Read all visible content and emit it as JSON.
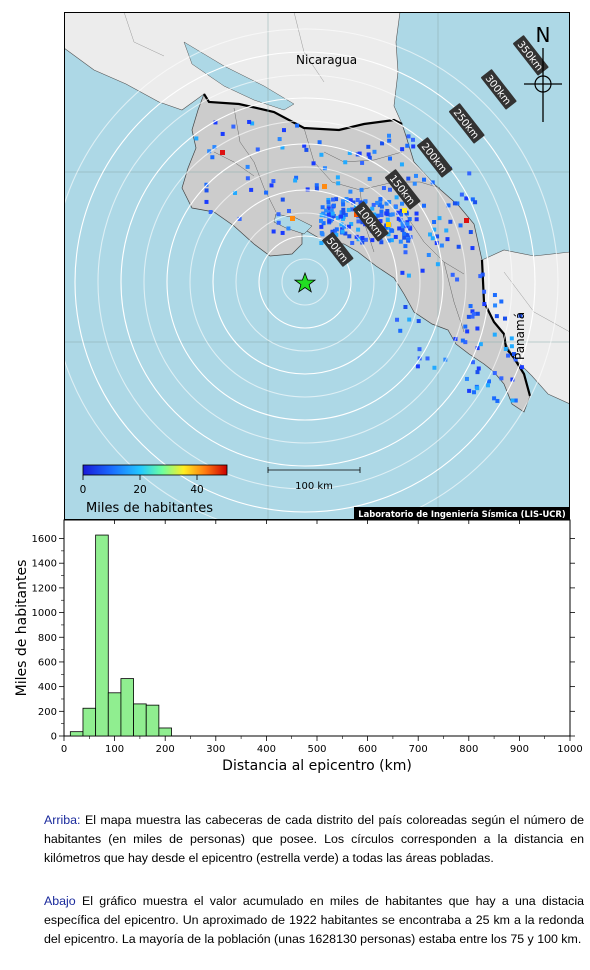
{
  "map": {
    "labels": {
      "nicaragua": "Nicaragua",
      "panama": "Panamá",
      "north": "N"
    },
    "rings": [
      "50km",
      "100km",
      "150km",
      "200km",
      "250km",
      "300km",
      "350km"
    ],
    "scale_bar": "100 km",
    "colorbar": {
      "ticks": [
        "0",
        "20",
        "40"
      ],
      "label": "Miles de habitantes"
    },
    "credit": "Laboratorio de Ingeniería Sísmica (LIS-UCR)",
    "colors": {
      "sea": "#add8e6",
      "land_neighbor": "#ececec",
      "costa_rica": "#cccccc",
      "epicenter": "#22dd22"
    }
  },
  "chart_data": {
    "type": "bar",
    "xlabel": "Distancia al epicentro (km)",
    "ylabel": "Miles de habitantes",
    "xlim": [
      0,
      1000
    ],
    "ylim": [
      0,
      1750
    ],
    "xticks": [
      "0",
      "100",
      "200",
      "300",
      "400",
      "500",
      "600",
      "700",
      "800",
      "900",
      "1000"
    ],
    "yticks": [
      "0",
      "200",
      "400",
      "600",
      "800",
      "1000",
      "1200",
      "1400",
      "1600"
    ],
    "bin_width_km": 25,
    "bins": [
      {
        "x": 25,
        "value": 35
      },
      {
        "x": 50,
        "value": 225
      },
      {
        "x": 75,
        "value": 1628
      },
      {
        "x": 100,
        "value": 350
      },
      {
        "x": 125,
        "value": 465
      },
      {
        "x": 150,
        "value": 260
      },
      {
        "x": 175,
        "value": 250
      },
      {
        "x": 200,
        "value": 65
      }
    ],
    "bar_color": "#90ee90"
  },
  "captions": {
    "top_lead": "Arriba:",
    "top_text": " El mapa muestra las cabeceras de cada distrito del país coloreadas según el número de habitantes (en miles de personas) que posee.  Los círculos corresponden a la distancia en kilómetros que hay desde el epicentro (estrella verde) a todas las áreas pobladas.",
    "bottom_lead": "Abajo",
    "bottom_text": " El gráfico muestra el valor acumulado en miles de habitantes que hay a una distacia específica del epicentro.  Un aproximado de 1922 habitantes se encontraba a 25 km a la redonda del epicentro.  La mayoría de la población (unas 1628130 personas) estaba entre los 75 y 100 km."
  }
}
